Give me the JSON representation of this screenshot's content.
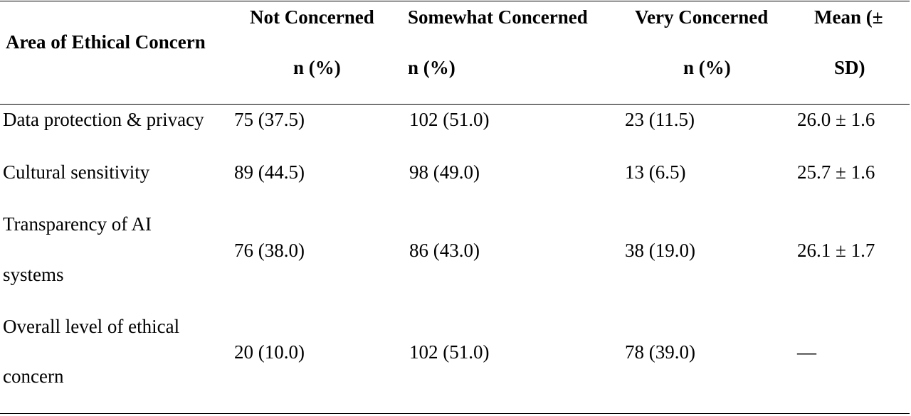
{
  "table": {
    "headers": {
      "area": "Area of Ethical Concern",
      "not_concerned": {
        "line1": "Not Concerned",
        "line2": "n (%)"
      },
      "somewhat_concerned": {
        "line1": "Somewhat Concerned",
        "line2": "n (%)"
      },
      "very_concerned": {
        "line1": "Very Concerned",
        "line2": "n (%)"
      },
      "mean": {
        "line1": "Mean (±",
        "line2": "SD)"
      }
    },
    "rows": [
      {
        "area_lines": [
          "Data protection & privacy"
        ],
        "not_concerned": "75 (37.5)",
        "somewhat_concerned": "102 (51.0)",
        "very_concerned": "23 (11.5)",
        "mean": "26.0 ± 1.6"
      },
      {
        "area_lines": [
          "Cultural sensitivity"
        ],
        "not_concerned": "89 (44.5)",
        "somewhat_concerned": "98 (49.0)",
        "very_concerned": "13 (6.5)",
        "mean": "25.7 ± 1.6"
      },
      {
        "area_lines": [
          "Transparency of AI",
          "systems"
        ],
        "not_concerned": "76 (38.0)",
        "somewhat_concerned": "86 (43.0)",
        "very_concerned": "38 (19.0)",
        "mean": "26.1 ± 1.7"
      },
      {
        "area_lines": [
          "Overall level of ethical",
          "concern"
        ],
        "not_concerned": "20 (10.0)",
        "somewhat_concerned": "102 (51.0)",
        "very_concerned": "78 (39.0)",
        "mean": "—"
      }
    ]
  }
}
